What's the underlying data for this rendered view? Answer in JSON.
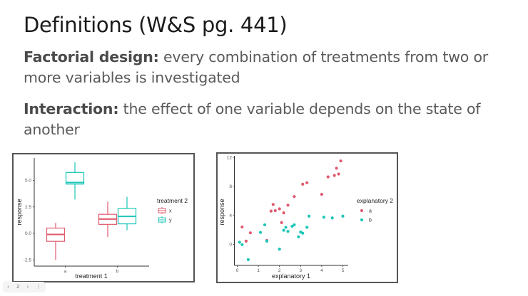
{
  "slide": {
    "title": "Definitions (W&S pg. 441)",
    "definitions": [
      {
        "term": "Factorial design:",
        "text": " every combination of treatments from two or more variables is investigated"
      },
      {
        "term": "Interaction:",
        "text": " the effect of one variable depends on the state of another"
      }
    ]
  },
  "nav": {
    "prev": "‹",
    "page": "2",
    "next": "›",
    "more": "⋮"
  },
  "colors": {
    "series_a": "#e05a6e",
    "series_b": "#1cc6b8",
    "axis": "#333333",
    "frame": "#555555"
  },
  "chart_data": [
    {
      "type": "box",
      "title": "",
      "xlabel": "treatment 1",
      "ylabel": "response",
      "categories": [
        "a",
        "b"
      ],
      "x_tick_labels": [
        "a",
        "b"
      ],
      "y_ticks": [
        "-2.5",
        "0.0",
        "2.5",
        "5.0"
      ],
      "ylim": [
        -2.8,
        7.0
      ],
      "grid": false,
      "legend": {
        "title": "treatment 2",
        "entries": [
          "x",
          "y"
        ],
        "position": "right"
      },
      "series": [
        {
          "name": "x",
          "color": "#e05a6e",
          "boxes": [
            {
              "category": "a",
              "min": -2.5,
              "q1": -0.75,
              "median": -0.1,
              "q3": 0.5,
              "max": 1.0
            },
            {
              "category": "b",
              "min": -0.35,
              "q1": 0.85,
              "median": 1.35,
              "q3": 1.8,
              "max": 3.0
            }
          ]
        },
        {
          "name": "y",
          "color": "#1cc6b8",
          "boxes": [
            {
              "category": "a",
              "min": 3.2,
              "q1": 4.65,
              "median": 4.8,
              "q3": 5.75,
              "max": 6.7
            },
            {
              "category": "b",
              "min": 0.3,
              "q1": 0.9,
              "median": 1.6,
              "q3": 2.35,
              "max": 3.45
            }
          ]
        }
      ]
    },
    {
      "type": "scatter",
      "title": "",
      "xlabel": "explanatory 1",
      "ylabel": "response",
      "x_ticks": [
        "0",
        "1",
        "2",
        "3",
        "4",
        "5"
      ],
      "y_ticks": [
        "0",
        "4",
        "8",
        "12"
      ],
      "xlim": [
        -0.15,
        5.25
      ],
      "ylim": [
        -2.9,
        12.2
      ],
      "grid": false,
      "legend": {
        "title": "explanatory 2",
        "entries": [
          "a",
          "b"
        ],
        "position": "right"
      },
      "series": [
        {
          "name": "a",
          "color": "#e05a6e",
          "points": [
            [
              0.23,
              2.4
            ],
            [
              0.42,
              0.45
            ],
            [
              0.62,
              1.6
            ],
            [
              1.4,
              0.55
            ],
            [
              1.6,
              4.6
            ],
            [
              1.7,
              5.5
            ],
            [
              1.8,
              4.65
            ],
            [
              2.0,
              4.9
            ],
            [
              2.1,
              3.0
            ],
            [
              2.2,
              4.35
            ],
            [
              2.4,
              5.4
            ],
            [
              2.7,
              6.6
            ],
            [
              3.1,
              8.3
            ],
            [
              3.3,
              8.5
            ],
            [
              4.0,
              6.9
            ],
            [
              4.3,
              9.3
            ],
            [
              4.6,
              9.5
            ],
            [
              4.7,
              10.5
            ],
            [
              4.8,
              9.7
            ],
            [
              4.9,
              11.5
            ]
          ]
        },
        {
          "name": "b",
          "color": "#1cc6b8",
          "points": [
            [
              0.11,
              0.3
            ],
            [
              0.23,
              -0.03
            ],
            [
              0.52,
              -2.1
            ],
            [
              1.1,
              1.65
            ],
            [
              1.3,
              2.7
            ],
            [
              1.4,
              0.45
            ],
            [
              2.0,
              -0.65
            ],
            [
              2.2,
              1.95
            ],
            [
              2.3,
              2.35
            ],
            [
              2.4,
              1.8
            ],
            [
              2.6,
              2.5
            ],
            [
              2.7,
              2.7
            ],
            [
              2.9,
              1.05
            ],
            [
              3.0,
              1.7
            ],
            [
              3.1,
              1.55
            ],
            [
              3.3,
              2.35
            ],
            [
              3.4,
              3.9
            ],
            [
              4.1,
              3.75
            ],
            [
              4.5,
              3.65
            ],
            [
              5.0,
              3.9
            ]
          ]
        }
      ]
    }
  ]
}
